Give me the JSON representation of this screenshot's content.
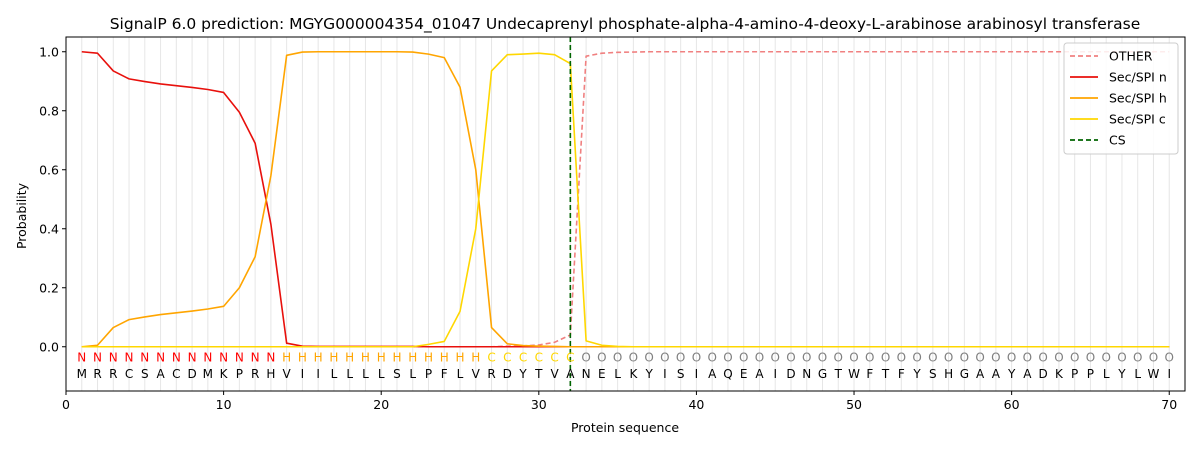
{
  "chart_data": {
    "type": "line",
    "title": "SignalP 6.0 prediction: MGYG000004354_01047 Undecaprenyl phosphate-alpha-4-amino-4-deoxy-L-arabinose arabinosyl transferase",
    "xlabel": "Protein sequence",
    "ylabel": "Probability",
    "xlim": [
      0,
      71
    ],
    "ylim": [
      -0.15,
      1.05
    ],
    "x_ticks": [
      0,
      10,
      20,
      30,
      40,
      50,
      60,
      70
    ],
    "y_ticks": [
      0.0,
      0.2,
      0.4,
      0.6,
      0.8,
      1.0
    ],
    "grid": "vertical lines at each residue",
    "legend_position": "top-right",
    "sequence": [
      "M",
      "R",
      "R",
      "C",
      "S",
      "A",
      "C",
      "D",
      "M",
      "K",
      "P",
      "R",
      "H",
      "V",
      "I",
      "I",
      "L",
      "L",
      "L",
      "L",
      "S",
      "L",
      "P",
      "F",
      "L",
      "V",
      "R",
      "D",
      "Y",
      "T",
      "V",
      "A",
      "N",
      "E",
      "L",
      "K",
      "Y",
      "I",
      "S",
      "I",
      "A",
      "Q",
      "E",
      "A",
      "I",
      "D",
      "N",
      "G",
      "T",
      "W",
      "F",
      "T",
      "F",
      "Y",
      "S",
      "H",
      "G",
      "A",
      "A",
      "Y",
      "A",
      "D",
      "K",
      "P",
      "P",
      "L",
      "Y",
      "L",
      "W",
      "I"
    ],
    "region_labels": [
      "N",
      "N",
      "N",
      "N",
      "N",
      "N",
      "N",
      "N",
      "N",
      "N",
      "N",
      "N",
      "N",
      "H",
      "H",
      "H",
      "H",
      "H",
      "H",
      "H",
      "H",
      "H",
      "H",
      "H",
      "H",
      "H",
      "C",
      "C",
      "C",
      "C",
      "C",
      "C",
      "O",
      "O",
      "O",
      "O",
      "O",
      "O",
      "O",
      "O",
      "O",
      "O",
      "O",
      "O",
      "O",
      "O",
      "O",
      "O",
      "O",
      "O",
      "O",
      "O",
      "O",
      "O",
      "O",
      "O",
      "O",
      "O",
      "O",
      "O",
      "O",
      "O",
      "O",
      "O",
      "O",
      "O",
      "O",
      "O",
      "O",
      "O"
    ],
    "region_colors": {
      "N": "#ff0000",
      "H": "#ffa500",
      "C": "#ffd700",
      "O": "#808080"
    },
    "cs_position": 32,
    "series": [
      {
        "name": "OTHER",
        "color": "#f08080",
        "dash": "dashed",
        "values": [
          0,
          0,
          0,
          0,
          0,
          0,
          0,
          0,
          0,
          0,
          0,
          0,
          0,
          0,
          0,
          0,
          0,
          0,
          0,
          0,
          0,
          0,
          0,
          0,
          0,
          0,
          0,
          0.002,
          0.003,
          0.006,
          0.015,
          0.04,
          0.985,
          0.995,
          0.998,
          0.999,
          1,
          1,
          1,
          1,
          1,
          1,
          1,
          1,
          1,
          1,
          1,
          1,
          1,
          1,
          1,
          1,
          1,
          1,
          1,
          1,
          1,
          1,
          1,
          1,
          1,
          1,
          1,
          1,
          1,
          1,
          1,
          1,
          1,
          1
        ]
      },
      {
        "name": "Sec/SPI n",
        "color": "#e8100c",
        "dash": "solid",
        "values": [
          1.0,
          0.995,
          0.935,
          0.908,
          0.899,
          0.891,
          0.885,
          0.879,
          0.872,
          0.862,
          0.795,
          0.69,
          0.415,
          0.012,
          0.002,
          0.001,
          0.001,
          0.001,
          0.001,
          0.001,
          0.001,
          0.001,
          0,
          0,
          0,
          0,
          0,
          0,
          0,
          0,
          0,
          0,
          0,
          0,
          0,
          0,
          0,
          0,
          0,
          0,
          0,
          0,
          0,
          0,
          0,
          0,
          0,
          0,
          0,
          0,
          0,
          0,
          0,
          0,
          0,
          0,
          0,
          0,
          0,
          0,
          0,
          0,
          0,
          0,
          0,
          0,
          0,
          0,
          0,
          0
        ]
      },
      {
        "name": "Sec/SPI h",
        "color": "#ffa500",
        "dash": "solid",
        "values": [
          0,
          0.005,
          0.065,
          0.092,
          0.101,
          0.109,
          0.115,
          0.121,
          0.128,
          0.137,
          0.2,
          0.305,
          0.58,
          0.988,
          0.999,
          1,
          1,
          1,
          1,
          1,
          1,
          0.999,
          0.992,
          0.98,
          0.88,
          0.6,
          0.065,
          0.01,
          0.004,
          0.002,
          0.001,
          0,
          0,
          0,
          0,
          0,
          0,
          0,
          0,
          0,
          0,
          0,
          0,
          0,
          0,
          0,
          0,
          0,
          0,
          0,
          0,
          0,
          0,
          0,
          0,
          0,
          0,
          0,
          0,
          0,
          0,
          0,
          0,
          0,
          0,
          0,
          0,
          0,
          0,
          0
        ]
      },
      {
        "name": "Sec/SPI c",
        "color": "#ffd700",
        "dash": "solid",
        "values": [
          0,
          0,
          0,
          0,
          0,
          0,
          0,
          0,
          0,
          0,
          0,
          0,
          0,
          0,
          0,
          0,
          0,
          0,
          0,
          0,
          0,
          0,
          0.008,
          0.018,
          0.12,
          0.4,
          0.935,
          0.99,
          0.992,
          0.995,
          0.99,
          0.96,
          0.02,
          0.005,
          0.001,
          0,
          0,
          0,
          0,
          0,
          0,
          0,
          0,
          0,
          0,
          0,
          0,
          0,
          0,
          0,
          0,
          0,
          0,
          0,
          0,
          0,
          0,
          0,
          0,
          0,
          0,
          0,
          0,
          0,
          0,
          0,
          0,
          0,
          0,
          0
        ]
      },
      {
        "name": "CS",
        "color": "#006400",
        "dash": "dashed",
        "values": []
      }
    ]
  }
}
